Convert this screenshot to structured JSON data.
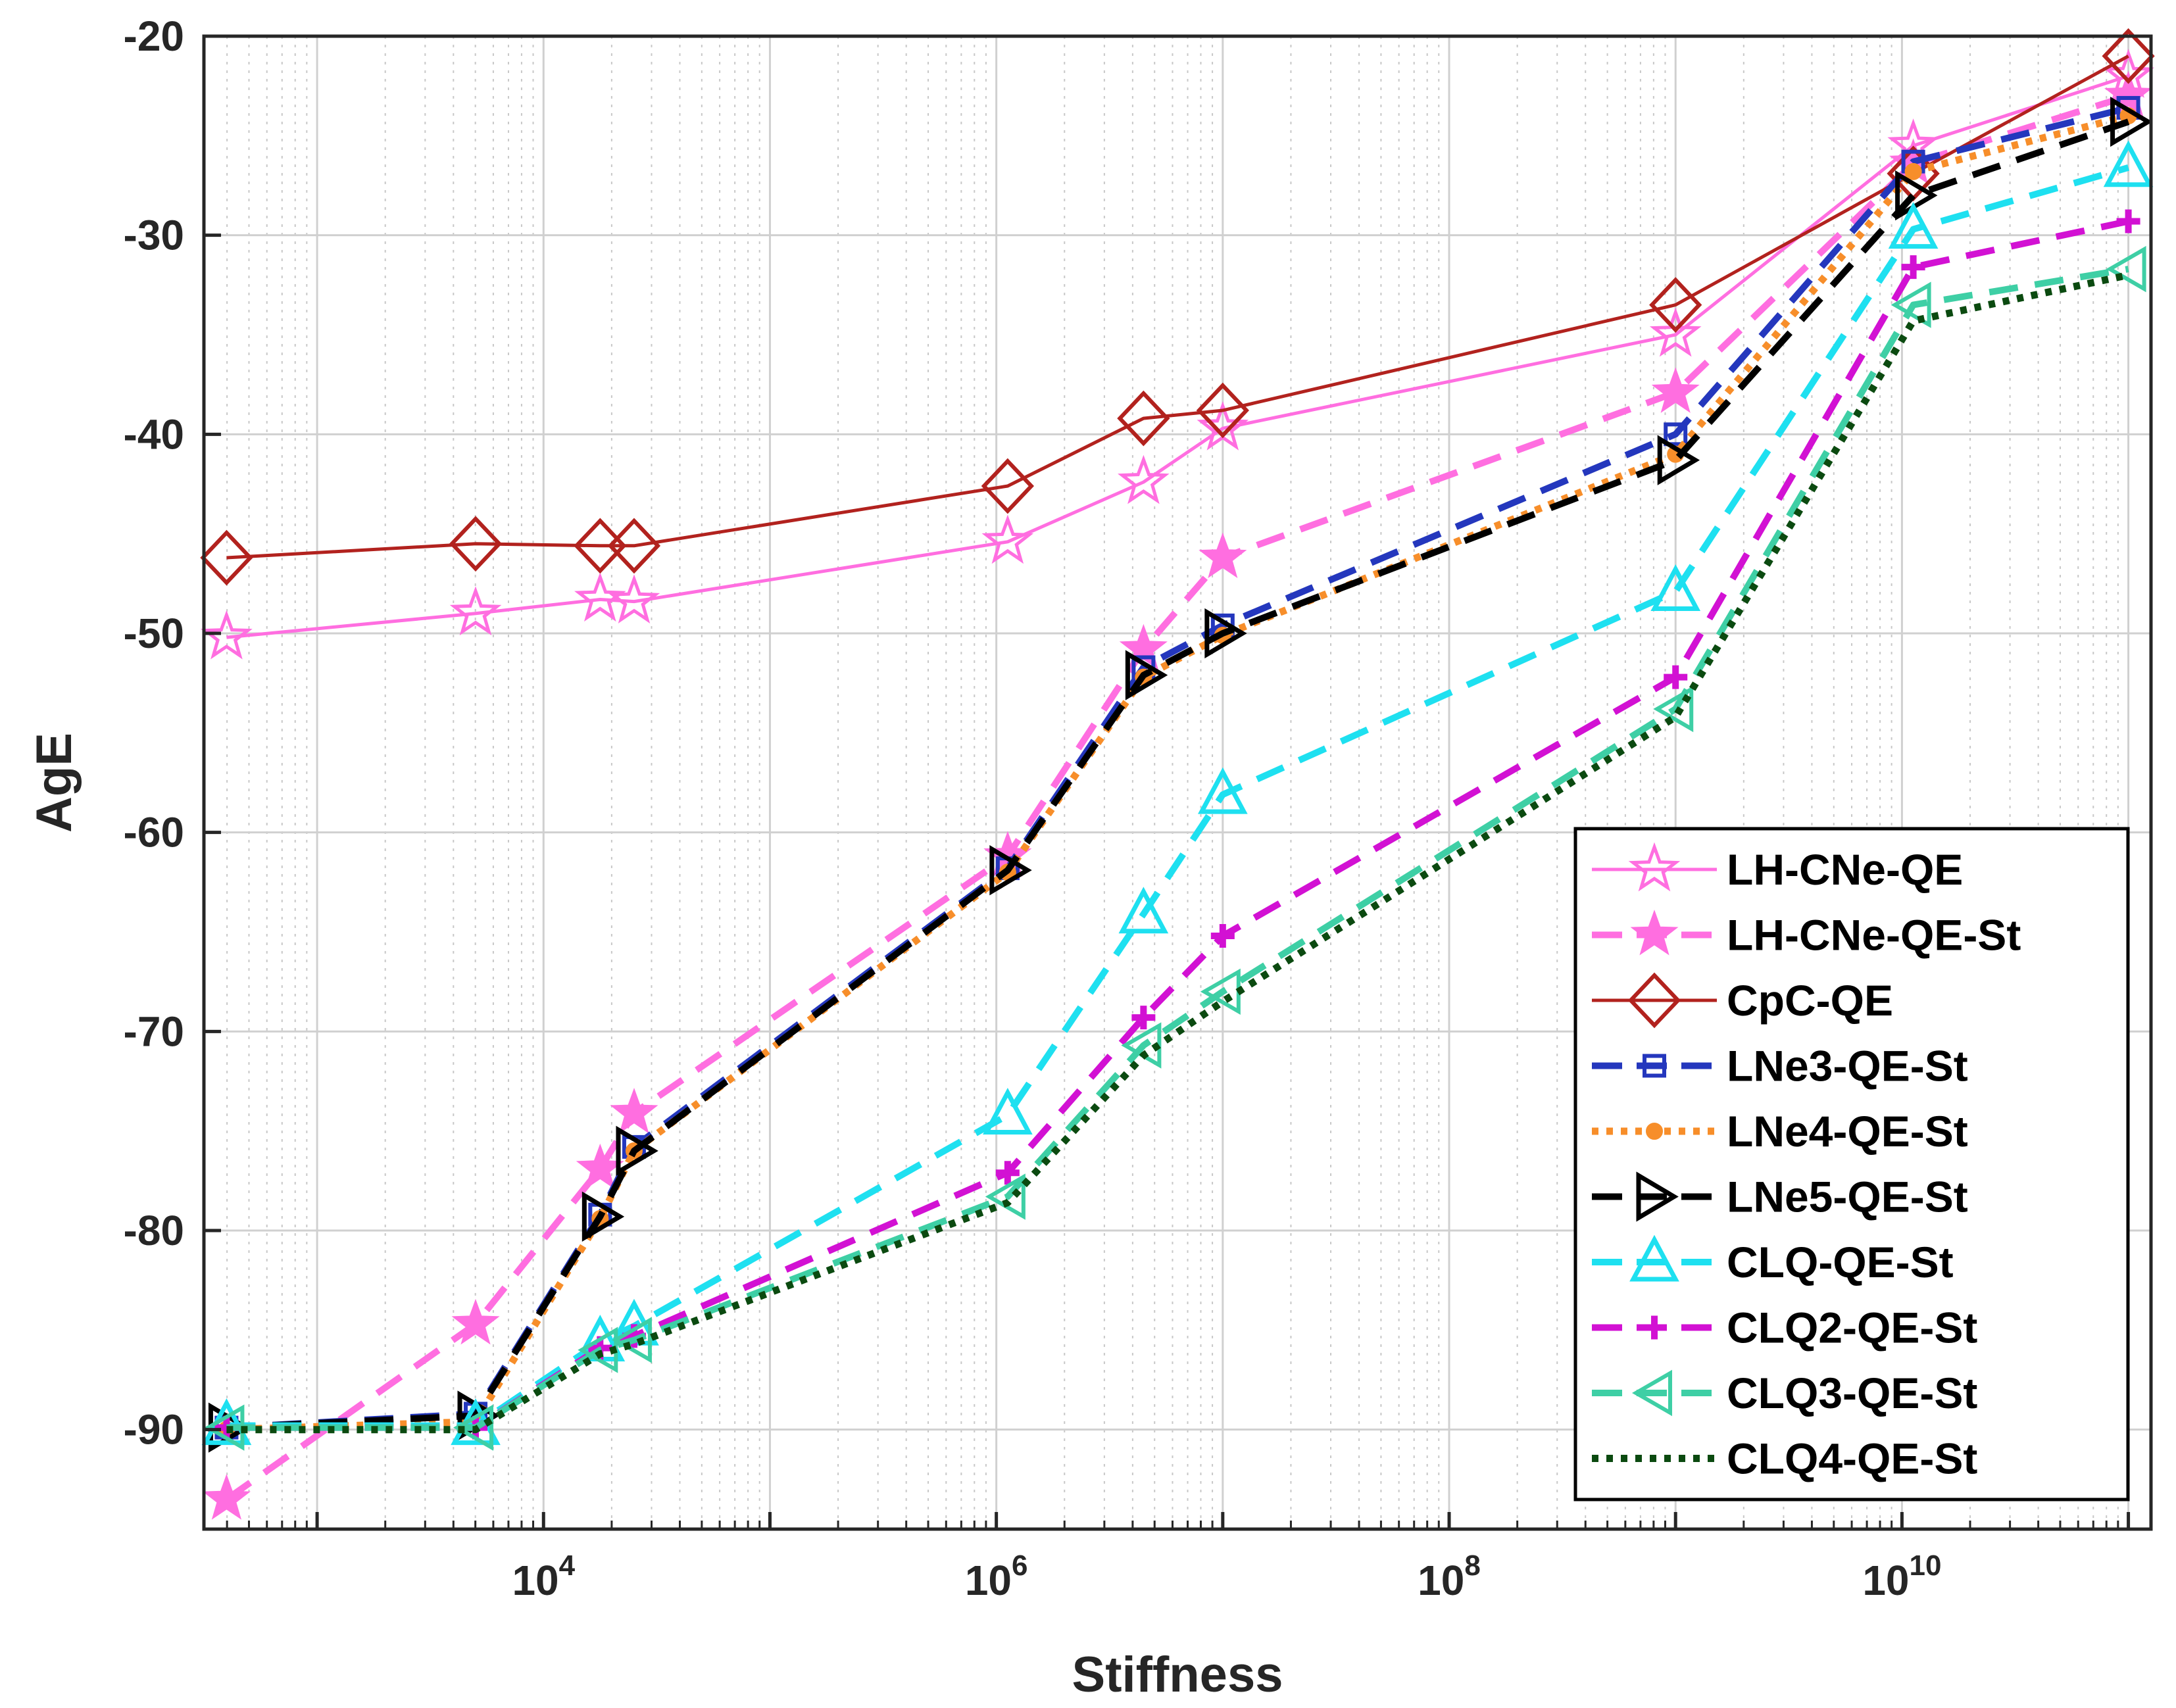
{
  "chart_data": {
    "type": "line",
    "xlabel": "Stiffness",
    "ylabel": "AgE",
    "xscale": "log",
    "xlim_log10": [
      2.5,
      11.1
    ],
    "ylim": [
      -95,
      -20
    ],
    "xticks": [
      {
        "exp": 4,
        "base": "10",
        "power": "4"
      },
      {
        "exp": 6,
        "base": "10",
        "power": "6"
      },
      {
        "exp": 8,
        "base": "10",
        "power": "8"
      },
      {
        "exp": 10,
        "base": "10",
        "power": "10"
      }
    ],
    "yticks": [
      {
        "value": -20,
        "label": "-20"
      },
      {
        "value": -30,
        "label": "-30"
      },
      {
        "value": -40,
        "label": "-40"
      },
      {
        "value": -50,
        "label": "-50"
      },
      {
        "value": -60,
        "label": "-60"
      },
      {
        "value": -70,
        "label": "-70"
      },
      {
        "value": -80,
        "label": "-80"
      },
      {
        "value": -90,
        "label": "-90"
      }
    ],
    "grid": true,
    "legend_position": "bottom-right",
    "series": [
      {
        "name": "LH-CNe-QE",
        "color": "#ff6ee0",
        "dash": "solid",
        "marker": "star-open",
        "x": [
          2.6,
          3.7,
          4.25,
          4.4,
          6.05,
          6.65,
          7.0,
          9.0,
          10.05,
          11.0
        ],
        "y": [
          -50.2,
          -49.0,
          -48.3,
          -48.4,
          -45.4,
          -42.4,
          -39.7,
          -35.0,
          -25.5,
          -22.0
        ]
      },
      {
        "name": "LH-CNe-QE-St",
        "color": "#ff6ee0",
        "dash": "dash",
        "marker": "star-filled",
        "x": [
          2.6,
          3.7,
          4.25,
          4.4,
          6.05,
          6.65,
          7.0,
          9.0,
          10.05,
          11.0
        ],
        "y": [
          -93.5,
          -84.7,
          -76.9,
          -74.1,
          -61.2,
          -50.8,
          -46.2,
          -37.9,
          -26.4,
          -23.0
        ]
      },
      {
        "name": "CpC-QE",
        "color": "#b2221e",
        "dash": "solid",
        "marker": "diamond-open",
        "x": [
          2.6,
          3.7,
          4.25,
          4.4,
          6.05,
          6.65,
          7.0,
          9.0,
          10.05,
          11.0
        ],
        "y": [
          -46.2,
          -45.5,
          -45.6,
          -45.6,
          -42.6,
          -39.2,
          -38.8,
          -33.5,
          -26.9,
          -21.0
        ]
      },
      {
        "name": "LNe3-QE-St",
        "color": "#2437bd",
        "dash": "dash",
        "marker": "square-open",
        "x": [
          2.6,
          3.7,
          4.25,
          4.4,
          6.05,
          6.65,
          7.0,
          9.0,
          10.05,
          11.0
        ],
        "y": [
          -89.9,
          -89.2,
          -79.2,
          -75.8,
          -61.8,
          -51.7,
          -49.6,
          -40.0,
          -26.3,
          -23.6
        ]
      },
      {
        "name": "LNe4-QE-St",
        "color": "#f78e2a",
        "dash": "dot",
        "marker": "dot-filled",
        "x": [
          2.6,
          3.7,
          4.25,
          4.4,
          6.05,
          6.65,
          7.0,
          9.0,
          10.05,
          11.0
        ],
        "y": [
          -90.0,
          -89.6,
          -79.4,
          -76.0,
          -62.0,
          -52.2,
          -50.1,
          -41.0,
          -26.8,
          -24.0
        ]
      },
      {
        "name": "LNe5-QE-St",
        "color": "#000000",
        "dash": "dash",
        "marker": "triangle-right-open",
        "x": [
          2.6,
          3.7,
          4.25,
          4.4,
          6.05,
          6.65,
          7.0,
          9.0,
          10.05,
          11.0
        ],
        "y": [
          -89.9,
          -89.3,
          -79.3,
          -76.0,
          -61.9,
          -52.1,
          -50.0,
          -41.3,
          -28.0,
          -24.3
        ]
      },
      {
        "name": "CLQ-QE-St",
        "color": "#1ee0f0",
        "dash": "dash",
        "marker": "triangle-up-open",
        "x": [
          2.6,
          3.7,
          4.25,
          4.4,
          6.05,
          6.65,
          7.0,
          9.0,
          10.05,
          11.0
        ],
        "y": [
          -89.8,
          -89.8,
          -85.6,
          -84.8,
          -74.2,
          -64.1,
          -58.1,
          -47.9,
          -29.7,
          -26.6
        ]
      },
      {
        "name": "CLQ2-QE-St",
        "color": "#d211d3",
        "dash": "dash",
        "marker": "plus",
        "x": [
          2.6,
          3.7,
          4.25,
          4.4,
          6.05,
          6.65,
          7.0,
          9.0,
          10.05,
          11.0
        ],
        "y": [
          -89.9,
          -89.9,
          -85.9,
          -85.3,
          -77.1,
          -69.3,
          -65.2,
          -52.2,
          -31.6,
          -29.3
        ]
      },
      {
        "name": "CLQ3-QE-St",
        "color": "#3ecfa5",
        "dash": "dash",
        "marker": "triangle-left-open",
        "x": [
          2.6,
          3.7,
          4.25,
          4.4,
          6.05,
          6.65,
          7.0,
          9.0,
          10.05,
          11.0
        ],
        "y": [
          -89.9,
          -89.9,
          -86.0,
          -85.5,
          -78.3,
          -70.7,
          -68.0,
          -53.8,
          -33.5,
          -31.7
        ]
      },
      {
        "name": "CLQ4-QE-St",
        "color": "#0b4a10",
        "dash": "dot",
        "marker": "none",
        "x": [
          2.6,
          3.7,
          4.25,
          4.4,
          6.05,
          6.65,
          7.0,
          9.0,
          10.05,
          11.0
        ],
        "y": [
          -90.0,
          -90.0,
          -86.2,
          -85.7,
          -78.6,
          -71.2,
          -68.5,
          -54.2,
          -34.3,
          -32.0
        ]
      }
    ]
  }
}
